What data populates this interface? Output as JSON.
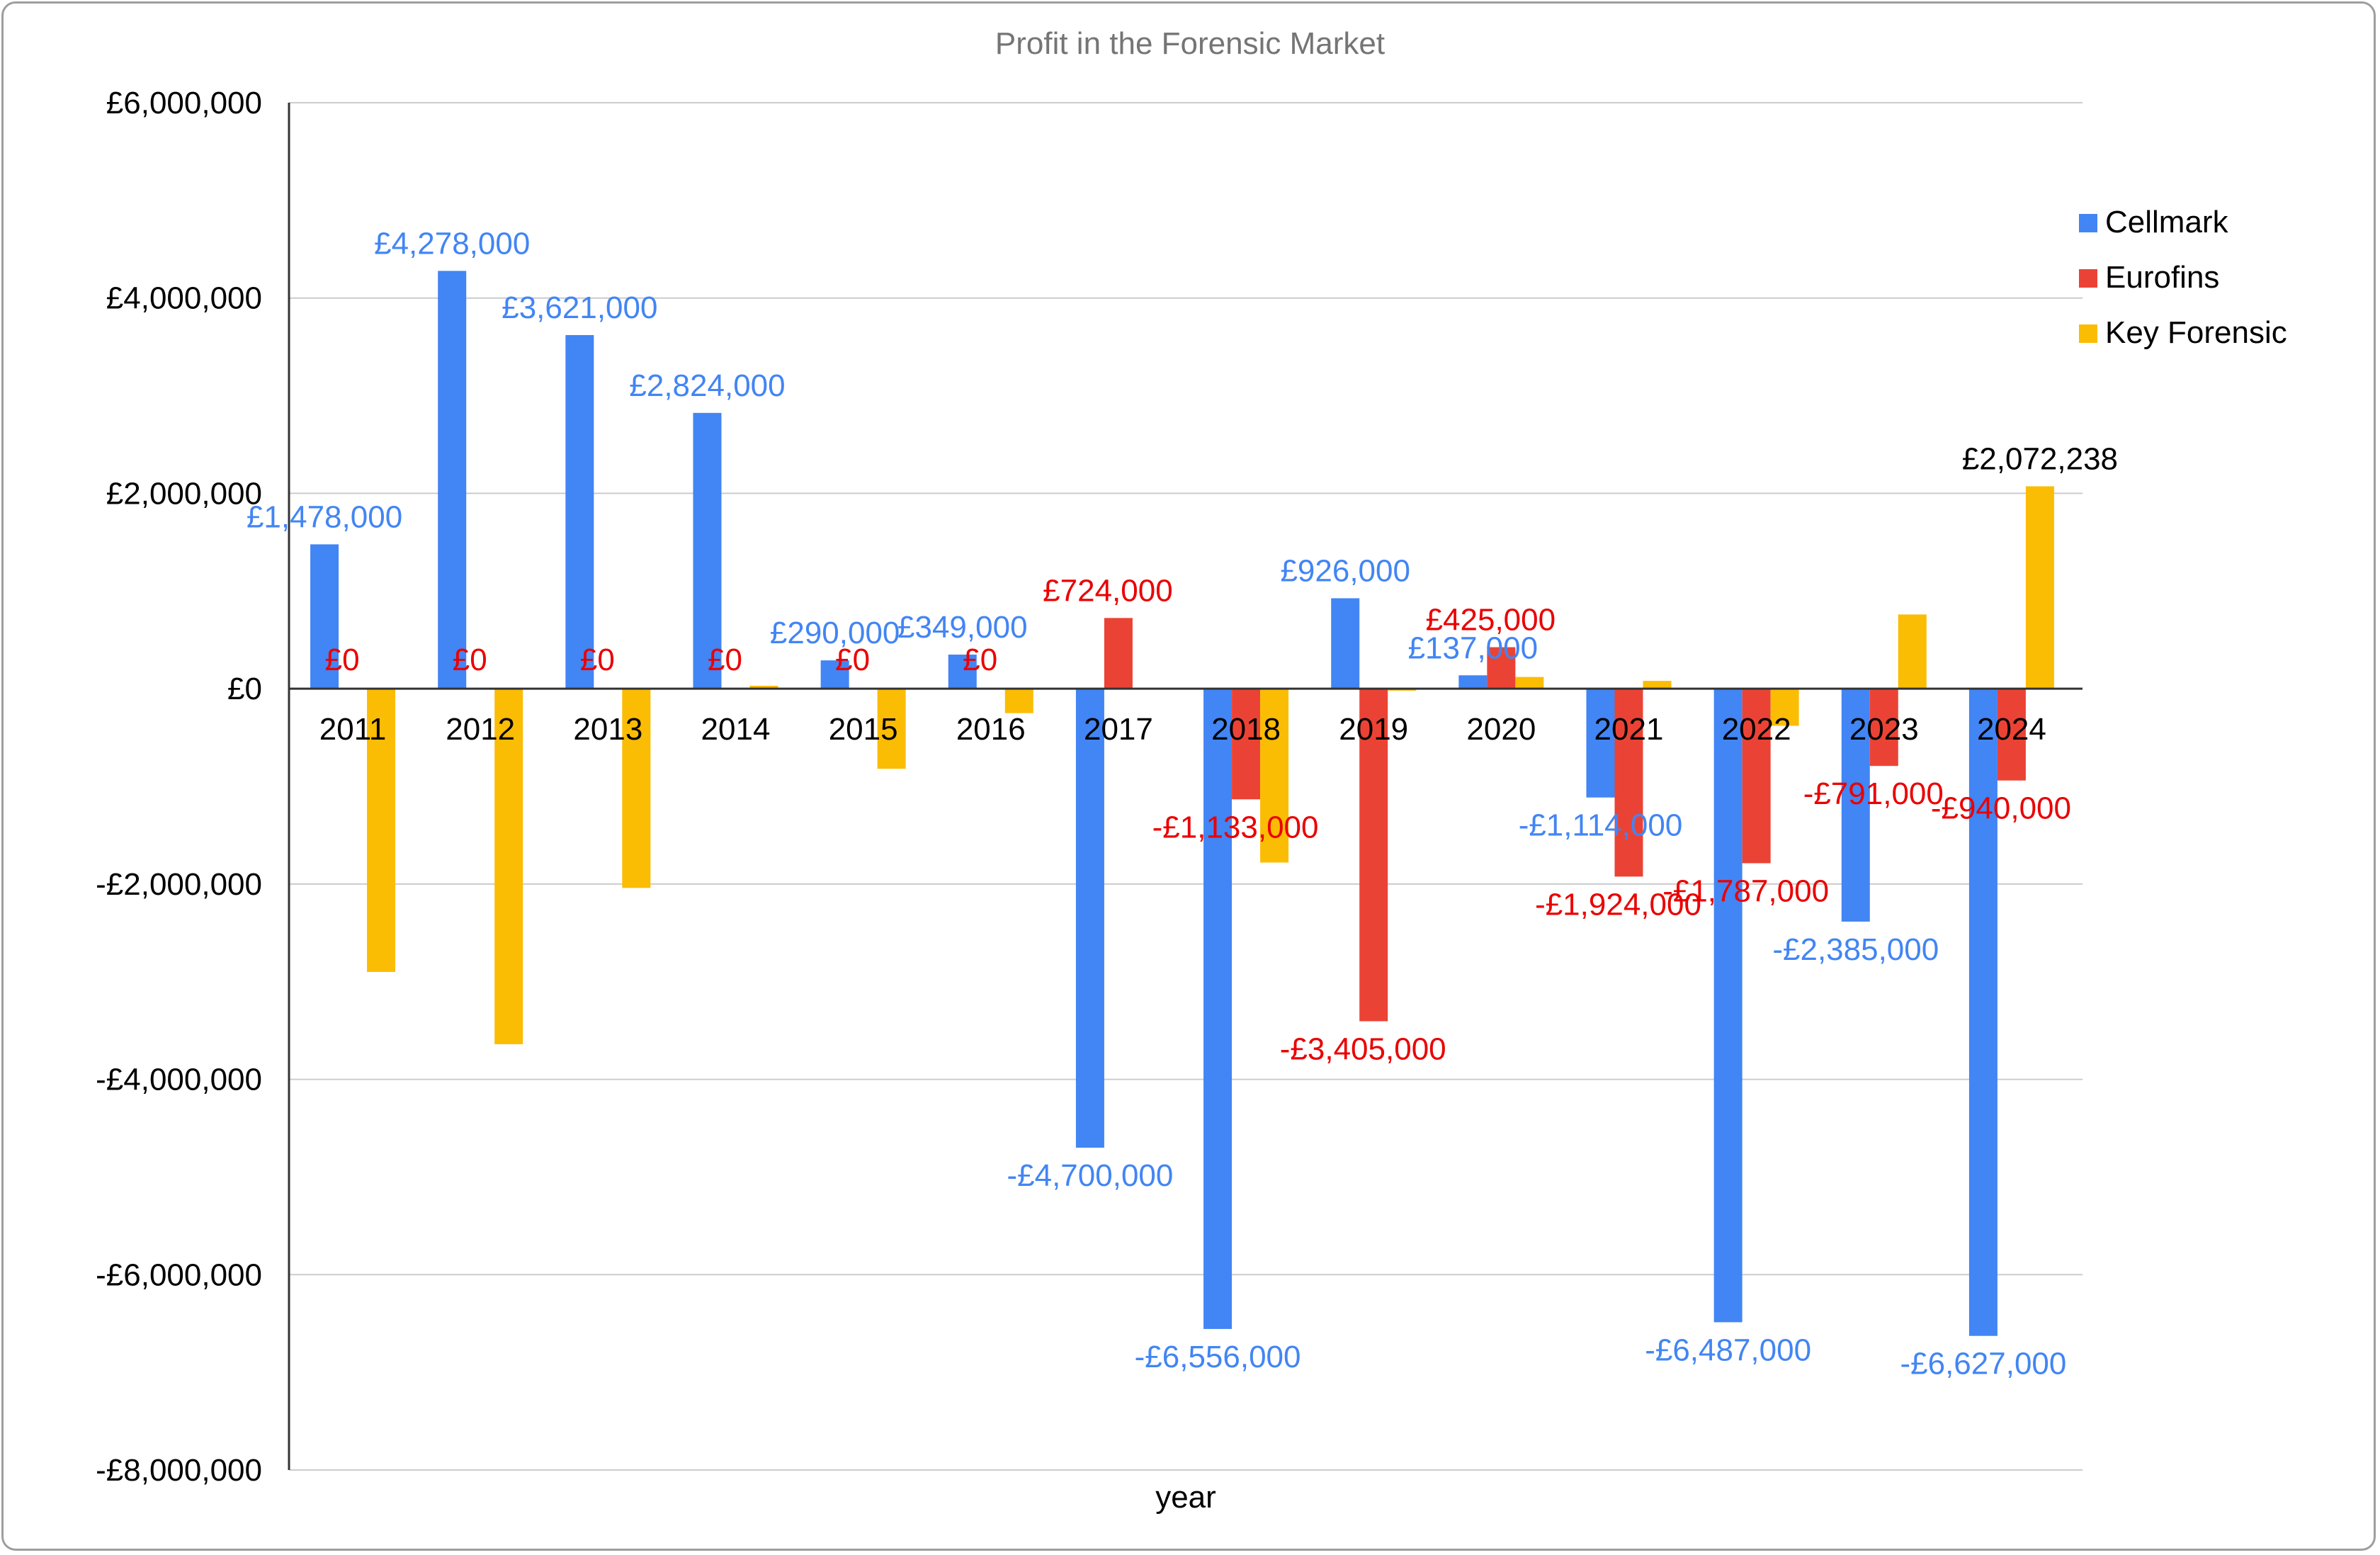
{
  "chart_data": {
    "type": "bar",
    "title": "Profit in the Forensic Market",
    "xlabel": "year",
    "ylabel": "",
    "ylim": [
      -8000000,
      6000000
    ],
    "yticks": [
      6000000,
      4000000,
      2000000,
      0,
      -2000000,
      -4000000,
      -6000000,
      -8000000
    ],
    "ytick_labels": [
      "£6,000,000",
      "£4,000,000",
      "£2,000,000",
      "£0",
      "-£2,000,000",
      "-£4,000,000",
      "-£6,000,000",
      "-£8,000,000"
    ],
    "grid": true,
    "legend_position": "right",
    "categories": [
      "2011",
      "2012",
      "2013",
      "2014",
      "2015",
      "2016",
      "2017",
      "2018",
      "2019",
      "2020",
      "2021",
      "2022",
      "2023",
      "2024"
    ],
    "series": [
      {
        "name": "Cellmark",
        "color": "#4285f4",
        "values": [
          1478000,
          4278000,
          3621000,
          2824000,
          290000,
          349000,
          -4700000,
          -6556000,
          926000,
          137000,
          -1114000,
          -6487000,
          -2385000,
          -6627000
        ],
        "labels": [
          "£1,478,000",
          "£4,278,000",
          "£3,621,000",
          "£2,824,000",
          "£290,000",
          "£349,000",
          "-£4,700,000",
          "-£6,556,000",
          "£926,000",
          "£137,000",
          "-£1,114,000",
          "-£6,487,000",
          "-£2,385,000",
          "-£6,627,000"
        ]
      },
      {
        "name": "Eurofins",
        "color": "#ea4335",
        "values": [
          0,
          0,
          0,
          0,
          0,
          0,
          724000,
          -1133000,
          -3405000,
          425000,
          -1924000,
          -1787000,
          -791000,
          -940000
        ],
        "labels": [
          "£0",
          "£0",
          "£0",
          "£0",
          "£0",
          "£0",
          "£724,000",
          "-£1,133,000",
          "-£3,405,000",
          "£425,000",
          "-£1,924,000",
          "-£1,787,000",
          "-£791,000",
          "-£940,000"
        ]
      },
      {
        "name": "Key Forensic",
        "color": "#fbbc04",
        "values": [
          -2900000,
          -3640000,
          -2040000,
          30000,
          -820000,
          -250000,
          0,
          -1780000,
          -20000,
          120000,
          80000,
          -380000,
          760000,
          2072238
        ],
        "labels": [
          "",
          "",
          "",
          "",
          "",
          "",
          "",
          "",
          "",
          "",
          "",
          "",
          "",
          "£2,072,238"
        ]
      }
    ]
  }
}
